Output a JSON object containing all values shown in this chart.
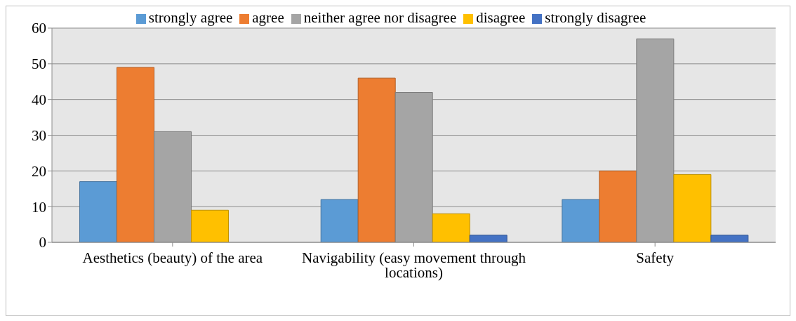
{
  "chart_data": {
    "type": "bar",
    "categories": [
      "Aesthetics (beauty) of the area",
      "Navigability (easy movement through locations)",
      "Safety"
    ],
    "series": [
      {
        "name": "strongly agree",
        "color": "#5b9bd5",
        "values": [
          17,
          12,
          12
        ]
      },
      {
        "name": "agree",
        "color": "#ed7d31",
        "values": [
          49,
          46,
          20
        ]
      },
      {
        "name": "neither agree nor disagree",
        "color": "#a5a5a5",
        "values": [
          31,
          42,
          57
        ]
      },
      {
        "name": "disagree",
        "color": "#ffc000",
        "values": [
          9,
          8,
          19
        ]
      },
      {
        "name": "strongly disagree",
        "color": "#4472c4",
        "values": [
          0,
          2,
          2
        ]
      }
    ],
    "ylim": [
      0,
      60
    ],
    "yticks": [
      0,
      10,
      20,
      30,
      40,
      50,
      60
    ],
    "grid": "y",
    "legend": "top"
  }
}
